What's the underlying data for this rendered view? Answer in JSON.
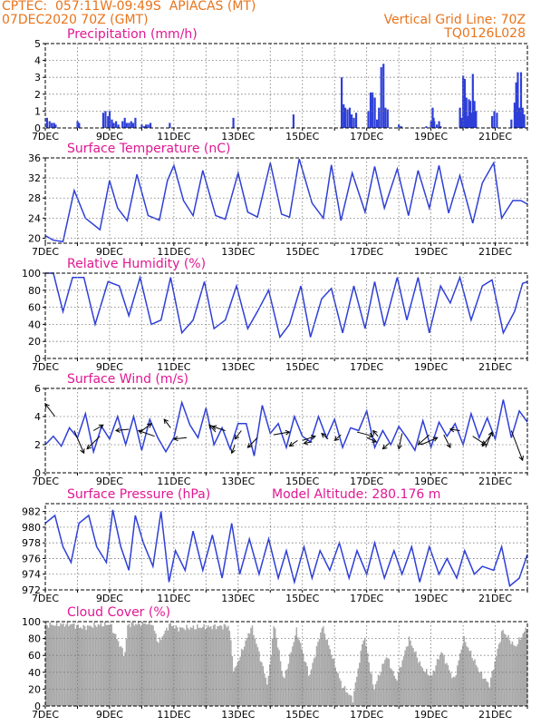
{
  "header": {
    "line1_left": "CPTEC:  057:11W-09:49S  APIACAS (MT)",
    "line2_left": "07DEC2020 70Z (GMT)",
    "line1_right": "Vertical Grid Line: 70Z",
    "line2_right": "TQ0126L028",
    "model_altitude": "Model Altitude: 280.176 m",
    "color": "#e8741c"
  },
  "colors": {
    "title": "#e01893",
    "series": "#2e3fd8",
    "cloud": "#a9a9a9",
    "arrow": "#000000"
  },
  "x_axis": {
    "tick_labels": [
      "7DEC",
      "9DEC",
      "11DEC",
      "13DEC",
      "15DEC",
      "17DEC",
      "19DEC",
      "21DEC"
    ],
    "tick_days": [
      7,
      9,
      11,
      13,
      15,
      17,
      19,
      21
    ],
    "range_days": [
      7,
      22
    ]
  },
  "chart_data": [
    {
      "id": "precip",
      "type": "bar",
      "title": "Precipitation (mm/h)",
      "ylim": [
        0,
        5
      ],
      "yticks": [
        0,
        1,
        2,
        3,
        4,
        5
      ],
      "x": [
        7.05,
        7.13,
        7.2,
        7.27,
        7.32,
        8.0,
        8.05,
        8.8,
        8.87,
        8.95,
        9.0,
        9.07,
        9.13,
        9.2,
        9.27,
        9.4,
        9.47,
        9.53,
        9.6,
        9.67,
        9.73,
        9.8,
        10.0,
        10.07,
        10.13,
        10.2,
        10.27,
        10.87,
        12.85,
        14.72,
        16.22,
        16.28,
        16.33,
        16.4,
        16.47,
        16.53,
        16.6,
        16.67,
        17.05,
        17.12,
        17.18,
        17.25,
        17.32,
        17.38,
        17.45,
        17.52,
        17.58,
        17.65,
        18.0,
        18.07,
        18.85,
        19.0,
        19.05,
        19.08,
        19.1,
        19.18,
        19.25,
        19.3,
        19.9,
        19.95,
        20.0,
        20.05,
        20.1,
        20.15,
        20.18,
        20.22,
        20.25,
        20.3,
        20.35,
        20.4,
        20.9,
        20.97,
        21.05,
        21.5,
        21.6,
        21.65,
        21.7,
        21.75,
        21.8,
        21.85,
        21.9
      ],
      "values": [
        0.6,
        0.4,
        0.3,
        0.3,
        0.2,
        0.4,
        0.3,
        0.9,
        1.0,
        0.7,
        1.0,
        0.5,
        0.3,
        0.4,
        0.2,
        0.4,
        0.6,
        0.3,
        0.3,
        0.4,
        0.3,
        0.6,
        0.2,
        0.1,
        0.2,
        0.2,
        0.3,
        0.3,
        0.6,
        0.8,
        3.0,
        1.4,
        1.2,
        1.1,
        1.2,
        0.8,
        0.6,
        0.9,
        1.0,
        2.1,
        2.1,
        1.8,
        0.5,
        1.2,
        3.6,
        3.8,
        1.2,
        1.1,
        0.2,
        0.1,
        0.1,
        0.4,
        1.2,
        0.6,
        0.4,
        0.2,
        0.4,
        0.1,
        1.2,
        0.6,
        3.1,
        2.9,
        1.8,
        0.7,
        1.7,
        1.6,
        0.9,
        3.2,
        1.6,
        1.0,
        0.7,
        1.0,
        0.9,
        0.5,
        1.5,
        2.7,
        3.3,
        1.2,
        3.3,
        1.2,
        0.8
      ]
    },
    {
      "id": "temp",
      "type": "line",
      "title": "Surface Temperature (nC)",
      "ylim": [
        19,
        36
      ],
      "yticks": [
        20,
        24,
        28,
        32,
        36
      ],
      "x": [
        7.0,
        7.25,
        7.55,
        7.9,
        8.25,
        8.7,
        9.0,
        9.25,
        9.55,
        9.85,
        10.2,
        10.55,
        10.8,
        11.0,
        11.3,
        11.6,
        11.9,
        12.3,
        12.6,
        13.0,
        13.3,
        13.6,
        14.0,
        14.35,
        14.6,
        14.9,
        15.3,
        15.65,
        15.9,
        16.2,
        16.55,
        16.95,
        17.25,
        17.55,
        17.95,
        18.3,
        18.6,
        18.95,
        19.25,
        19.55,
        19.9,
        20.3,
        20.6,
        20.95,
        21.2,
        21.55,
        21.8,
        22.0
      ],
      "values": [
        20.5,
        19.6,
        19.3,
        29.5,
        24.0,
        21.7,
        31.5,
        26.0,
        23.5,
        32.7,
        24.5,
        23.6,
        31.5,
        34.5,
        27.5,
        24.5,
        33.5,
        24.5,
        23.8,
        33.0,
        25.2,
        24.2,
        35.0,
        24.8,
        24.2,
        35.8,
        27.0,
        24.0,
        34.6,
        23.5,
        33.0,
        25.2,
        34.3,
        26.0,
        33.8,
        24.5,
        33.5,
        26.0,
        34.5,
        25.0,
        32.5,
        23.0,
        31.0,
        35.0,
        24.0,
        27.5,
        27.5,
        26.8
      ]
    },
    {
      "id": "rh",
      "type": "line",
      "title": "Relative Humidity (%)",
      "ylim": [
        0,
        100
      ],
      "yticks": [
        0,
        20,
        40,
        60,
        80,
        100
      ],
      "x": [
        7.0,
        7.25,
        7.55,
        7.85,
        8.2,
        8.55,
        8.95,
        9.3,
        9.6,
        9.95,
        10.3,
        10.6,
        10.9,
        11.25,
        11.6,
        11.95,
        12.25,
        12.6,
        12.95,
        13.3,
        13.6,
        13.95,
        14.3,
        14.6,
        14.95,
        15.25,
        15.6,
        15.9,
        16.25,
        16.6,
        16.95,
        17.25,
        17.55,
        17.95,
        18.25,
        18.6,
        18.95,
        19.3,
        19.6,
        19.9,
        20.25,
        20.6,
        20.9,
        21.25,
        21.6,
        21.85,
        22.0
      ],
      "values": [
        100,
        100,
        55,
        95,
        95,
        40,
        90,
        85,
        50,
        95,
        40,
        45,
        95,
        30,
        45,
        90,
        35,
        45,
        85,
        35,
        55,
        80,
        25,
        40,
        85,
        25,
        70,
        82,
        30,
        85,
        35,
        90,
        38,
        95,
        45,
        95,
        30,
        85,
        65,
        95,
        45,
        85,
        92,
        30,
        55,
        88,
        90
      ]
    },
    {
      "id": "wind",
      "type": "line",
      "title": "Surface Wind (m/s)",
      "ylim": [
        0,
        6
      ],
      "yticks": [
        0,
        2,
        4,
        6
      ],
      "x": [
        7.0,
        7.25,
        7.5,
        7.75,
        8.0,
        8.25,
        8.5,
        8.75,
        9.0,
        9.25,
        9.5,
        9.75,
        10.0,
        10.25,
        10.5,
        10.75,
        11.0,
        11.25,
        11.5,
        11.75,
        12.0,
        12.25,
        12.5,
        12.75,
        13.0,
        13.25,
        13.5,
        13.75,
        14.0,
        14.25,
        14.5,
        14.75,
        15.0,
        15.25,
        15.5,
        15.75,
        16.0,
        16.25,
        16.5,
        16.75,
        17.0,
        17.25,
        17.5,
        17.75,
        18.0,
        18.25,
        18.5,
        18.75,
        19.0,
        19.25,
        19.5,
        19.75,
        20.0,
        20.25,
        20.5,
        20.75,
        21.0,
        21.25,
        21.5,
        21.75,
        22.0
      ],
      "values": [
        2.0,
        2.6,
        1.9,
        3.2,
        2.5,
        4.2,
        1.5,
        3.3,
        2.4,
        4.0,
        2.0,
        4.0,
        1.6,
        3.8,
        2.5,
        1.5,
        2.5,
        5.0,
        3.4,
        2.5,
        4.6,
        2.0,
        3.2,
        1.7,
        3.5,
        3.5,
        1.2,
        4.8,
        2.8,
        3.5,
        1.8,
        4.0,
        2.6,
        2.2,
        4.0,
        2.5,
        3.8,
        1.8,
        3.2,
        3.0,
        4.4,
        1.8,
        3.0,
        2.0,
        3.3,
        2.5,
        1.6,
        3.7,
        1.8,
        3.6,
        2.6,
        3.5,
        2.0,
        4.2,
        2.5,
        3.9,
        2.4,
        5.2,
        2.5,
        4.4,
        3.6
      ]
    },
    {
      "id": "pressure",
      "type": "line",
      "title": "Surface Pressure (hPa)",
      "ylim": [
        972,
        983
      ],
      "yticks": [
        972,
        974,
        976,
        978,
        980,
        982
      ],
      "x": [
        7.0,
        7.3,
        7.55,
        7.8,
        8.05,
        8.35,
        8.6,
        8.9,
        9.1,
        9.35,
        9.6,
        9.8,
        10.05,
        10.35,
        10.6,
        10.85,
        11.05,
        11.35,
        11.6,
        11.9,
        12.2,
        12.5,
        12.8,
        13.05,
        13.35,
        13.65,
        13.95,
        14.25,
        14.5,
        14.75,
        15.05,
        15.3,
        15.55,
        15.85,
        16.15,
        16.45,
        16.7,
        17.0,
        17.25,
        17.55,
        17.85,
        18.1,
        18.4,
        18.65,
        18.95,
        19.25,
        19.5,
        19.8,
        20.05,
        20.35,
        20.6,
        20.95,
        21.2,
        21.45,
        21.75,
        22.0
      ],
      "values": [
        980.5,
        981.5,
        977.5,
        975.5,
        980.5,
        981.5,
        977.5,
        975.5,
        982.2,
        977.5,
        974.5,
        981.5,
        978.0,
        975.0,
        982.0,
        973.0,
        977.0,
        974.5,
        979.5,
        974.5,
        979.0,
        973.5,
        980.5,
        974.0,
        978.5,
        974.0,
        978.5,
        973.5,
        977.0,
        973.0,
        977.5,
        973.5,
        977.0,
        974.5,
        978.0,
        973.5,
        977.0,
        974.0,
        978.0,
        973.5,
        977.0,
        974.0,
        977.5,
        973.0,
        977.5,
        974.0,
        976.0,
        973.5,
        977.0,
        974.0,
        975.0,
        974.5,
        977.5,
        972.5,
        973.5,
        976.5
      ]
    },
    {
      "id": "cloud",
      "type": "bar",
      "title": "Cloud Cover (%)",
      "ylim": [
        0,
        100
      ],
      "yticks": [
        0,
        20,
        40,
        60,
        80,
        100
      ],
      "profile_days": [
        7.0,
        7.8,
        8.1,
        8.6,
        9.0,
        9.45,
        9.55,
        10.3,
        10.5,
        10.85,
        11.1,
        12.7,
        12.85,
        13.4,
        13.9,
        14.1,
        14.4,
        14.8,
        15.2,
        15.6,
        16.2,
        16.55,
        16.9,
        17.2,
        17.6,
        17.9,
        18.3,
        18.7,
        19.0,
        19.3,
        19.7,
        20.0,
        20.5,
        20.8,
        21.2,
        21.6,
        22.0
      ],
      "profile_values": [
        96,
        97,
        93,
        96,
        97,
        60,
        97,
        98,
        75,
        97,
        92,
        95,
        40,
        95,
        25,
        98,
        30,
        90,
        35,
        95,
        25,
        8,
        85,
        20,
        60,
        30,
        80,
        45,
        35,
        65,
        30,
        80,
        40,
        25,
        90,
        70,
        95
      ]
    }
  ]
}
